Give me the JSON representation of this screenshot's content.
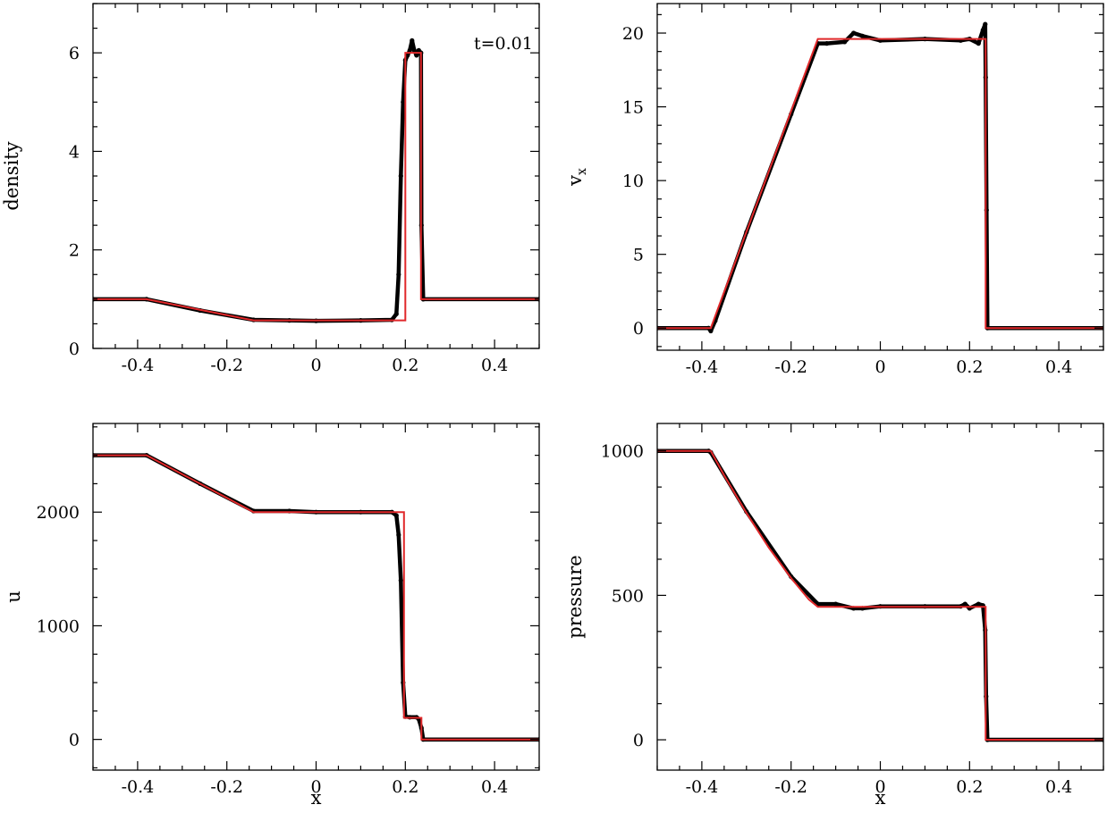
{
  "colors": {
    "simulation": "#000000",
    "exact": "#e0282a",
    "axes": "#000000"
  },
  "chart_data": [
    {
      "type": "scatter",
      "id": "density",
      "title": "",
      "xlabel": "",
      "ylabel": "density",
      "annotation": "t=0.01",
      "xlim": [
        -0.5,
        0.5
      ],
      "ylim": [
        0,
        7
      ],
      "xticks": [
        -0.4,
        -0.2,
        0,
        0.2,
        0.4
      ],
      "xtick_labels": [
        "-0.4",
        "-0.2",
        "0",
        "0.2",
        "0.4"
      ],
      "yticks": [
        0,
        2,
        4,
        6
      ],
      "ytick_labels": [
        "0",
        "2",
        "4",
        "6"
      ],
      "series": [
        {
          "role": "exact",
          "style": "line",
          "x": [
            -0.5,
            -0.38,
            -0.14,
            0.2,
            0.2,
            0.235,
            0.235,
            0.5
          ],
          "y": [
            1.0,
            1.0,
            0.57,
            0.57,
            6.0,
            6.0,
            1.0,
            1.0
          ]
        },
        {
          "role": "simulation",
          "style": "points",
          "x": [
            -0.5,
            -0.38,
            -0.26,
            -0.14,
            -0.06,
            0.0,
            0.1,
            0.17,
            0.18,
            0.185,
            0.19,
            0.195,
            0.2,
            0.205,
            0.21,
            0.215,
            0.22,
            0.225,
            0.23,
            0.235,
            0.236,
            0.24,
            0.5
          ],
          "y": [
            1.0,
            1.0,
            0.77,
            0.58,
            0.57,
            0.56,
            0.57,
            0.58,
            0.7,
            1.5,
            3.5,
            5.0,
            5.85,
            5.95,
            6.05,
            6.25,
            6.05,
            5.95,
            6.05,
            6.0,
            2.5,
            1.0,
            1.0
          ]
        }
      ]
    },
    {
      "type": "scatter",
      "id": "vx",
      "title": "",
      "xlabel": "",
      "ylabel": "v",
      "ylabel_subscript": "x",
      "xlim": [
        -0.5,
        0.5
      ],
      "ylim": [
        -1.5,
        22
      ],
      "xticks": [
        -0.4,
        -0.2,
        0,
        0.2,
        0.4
      ],
      "xtick_labels": [
        "-0.4",
        "-0.2",
        "0",
        "0.2",
        "0.4"
      ],
      "yticks": [
        0,
        5,
        10,
        15,
        20
      ],
      "ytick_labels": [
        "0",
        "5",
        "10",
        "15",
        "20"
      ],
      "series": [
        {
          "role": "exact",
          "style": "line",
          "x": [
            -0.5,
            -0.38,
            -0.14,
            0.236,
            0.236,
            0.5
          ],
          "y": [
            0.0,
            0.0,
            19.6,
            19.6,
            0.0,
            0.0
          ]
        },
        {
          "role": "simulation",
          "style": "points",
          "x": [
            -0.5,
            -0.385,
            -0.38,
            -0.37,
            -0.3,
            -0.2,
            -0.14,
            -0.12,
            -0.08,
            -0.06,
            -0.04,
            0.0,
            0.1,
            0.18,
            0.2,
            0.22,
            0.23,
            0.235,
            0.236,
            0.238,
            0.24,
            0.5
          ],
          "y": [
            0.0,
            0.0,
            -0.2,
            0.5,
            6.5,
            14.5,
            19.3,
            19.3,
            19.4,
            20.0,
            19.8,
            19.5,
            19.6,
            19.5,
            19.6,
            19.3,
            20.2,
            20.6,
            17.0,
            8.0,
            0.0,
            0.0
          ]
        }
      ]
    },
    {
      "type": "scatter",
      "id": "u",
      "title": "",
      "xlabel": "x",
      "ylabel": "u",
      "xlim": [
        -0.5,
        0.5
      ],
      "ylim": [
        -270,
        2780
      ],
      "xticks": [
        -0.4,
        -0.2,
        0,
        0.2,
        0.4
      ],
      "xtick_labels": [
        "-0.4",
        "-0.2",
        "0",
        "0.2",
        "0.4"
      ],
      "yticks": [
        0,
        1000,
        2000
      ],
      "ytick_labels": [
        "0",
        "1000",
        "2000"
      ],
      "series": [
        {
          "role": "exact",
          "style": "line",
          "x": [
            -0.5,
            -0.38,
            -0.14,
            0.197,
            0.197,
            0.236,
            0.236,
            0.5
          ],
          "y": [
            2500,
            2500,
            2000,
            2000,
            190,
            190,
            0,
            0
          ]
        },
        {
          "role": "simulation",
          "style": "points",
          "x": [
            -0.5,
            -0.38,
            -0.26,
            -0.14,
            -0.06,
            0.0,
            0.1,
            0.17,
            0.18,
            0.185,
            0.19,
            0.195,
            0.2,
            0.21,
            0.225,
            0.23,
            0.236,
            0.24,
            0.5
          ],
          "y": [
            2500,
            2500,
            2250,
            2010,
            2010,
            2000,
            2000,
            2000,
            1970,
            1800,
            1400,
            500,
            200,
            195,
            195,
            180,
            100,
            0,
            0
          ]
        }
      ]
    },
    {
      "type": "scatter",
      "id": "pressure",
      "title": "",
      "xlabel": "x",
      "ylabel": "pressure",
      "xlim": [
        -0.5,
        0.5
      ],
      "ylim": [
        -105,
        1095
      ],
      "xticks": [
        -0.4,
        -0.2,
        0,
        0.2,
        0.4
      ],
      "xtick_labels": [
        "-0.4",
        "-0.2",
        "0",
        "0.2",
        "0.4"
      ],
      "yticks": [
        0,
        500,
        1000
      ],
      "ytick_labels": [
        "0",
        "500",
        "1000"
      ],
      "series": [
        {
          "role": "exact",
          "style": "line",
          "x": [
            -0.5,
            -0.38,
            -0.35,
            -0.3,
            -0.25,
            -0.2,
            -0.16,
            -0.14,
            0.236,
            0.236,
            0.5
          ],
          "y": [
            1000,
            1000,
            915,
            785,
            665,
            560,
            485,
            460,
            460,
            0,
            0
          ]
        },
        {
          "role": "simulation",
          "style": "points",
          "x": [
            -0.5,
            -0.385,
            -0.38,
            -0.3,
            -0.2,
            -0.14,
            -0.1,
            -0.06,
            -0.04,
            0.0,
            0.1,
            0.18,
            0.19,
            0.2,
            0.22,
            0.23,
            0.235,
            0.237,
            0.24,
            0.5
          ],
          "y": [
            1000,
            1000,
            995,
            790,
            565,
            470,
            470,
            455,
            455,
            462,
            462,
            462,
            470,
            455,
            470,
            465,
            380,
            150,
            0,
            0
          ]
        }
      ]
    }
  ]
}
